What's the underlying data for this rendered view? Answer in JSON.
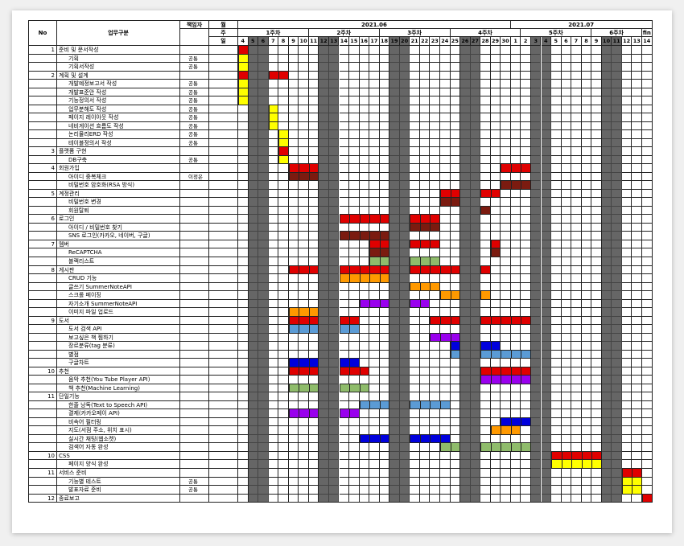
{
  "headers": {
    "no": "No",
    "category": "업무구분",
    "owner": "책임자",
    "month": "월",
    "week": "주",
    "day": "일"
  },
  "months": [
    {
      "label": "2021.06",
      "start": 0,
      "end": 27
    },
    {
      "label": "2021.07",
      "start": 27,
      "end": 41
    }
  ],
  "weeks": [
    {
      "label": "1주차",
      "start": 0,
      "end": 7
    },
    {
      "label": "2주차",
      "start": 7,
      "end": 14
    },
    {
      "label": "3주차",
      "start": 14,
      "end": 21
    },
    {
      "label": "4주차",
      "start": 21,
      "end": 28
    },
    {
      "label": "5주차",
      "start": 28,
      "end": 35
    },
    {
      "label": "6주차",
      "start": 35,
      "end": 40
    },
    {
      "label": "fin",
      "start": 40,
      "end": 41
    }
  ],
  "days": [
    "4",
    "5",
    "6",
    "7",
    "8",
    "9",
    "10",
    "11",
    "12",
    "13",
    "14",
    "15",
    "16",
    "17",
    "18",
    "19",
    "20",
    "21",
    "22",
    "23",
    "24",
    "25",
    "26",
    "27",
    "28",
    "29",
    "30",
    "1",
    "2",
    "3",
    "4",
    "5",
    "6",
    "7",
    "8",
    "9",
    "10",
    "11",
    "12",
    "13",
    "14"
  ],
  "weekend_cols": [
    1,
    2,
    8,
    9,
    15,
    16,
    22,
    23,
    29,
    30,
    36,
    37
  ],
  "colors": {
    "red": "#e00000",
    "yellow": "#ffff00",
    "darkred": "#7b1b10",
    "orange": "#ff9900",
    "green": "#8fbc6b",
    "steelblue": "#5b9bd5",
    "purple": "#9900ee",
    "blue": "#0000dd",
    "weekend": "#666666"
  },
  "rows": [
    {
      "no": "1",
      "task": "준비 및 문서작성",
      "owner": "",
      "indent": 0,
      "bars": [
        [
          0,
          1,
          "red"
        ]
      ]
    },
    {
      "no": "",
      "task": "기획",
      "owner": "공통",
      "indent": 1,
      "bars": [
        [
          0,
          1,
          "yellow"
        ]
      ]
    },
    {
      "no": "",
      "task": "기획서작성",
      "owner": "공통",
      "indent": 1,
      "bars": [
        [
          0,
          1,
          "yellow"
        ]
      ]
    },
    {
      "no": "2",
      "task": "계획 및 설계",
      "owner": "",
      "indent": 0,
      "bars": [
        [
          0,
          1,
          "red"
        ],
        [
          3,
          5,
          "red"
        ]
      ]
    },
    {
      "no": "",
      "task": "개발예정보고서 작성",
      "owner": "공통",
      "indent": 1,
      "bars": [
        [
          0,
          1,
          "yellow"
        ]
      ]
    },
    {
      "no": "",
      "task": "개발표준안 작성",
      "owner": "공통",
      "indent": 1,
      "bars": [
        [
          0,
          1,
          "yellow"
        ]
      ]
    },
    {
      "no": "",
      "task": "기능정의서 작성",
      "owner": "공통",
      "indent": 1,
      "bars": [
        [
          0,
          1,
          "yellow"
        ]
      ]
    },
    {
      "no": "",
      "task": "업무분해도 작성",
      "owner": "공통",
      "indent": 1,
      "bars": [
        [
          3,
          4,
          "yellow"
        ]
      ]
    },
    {
      "no": "",
      "task": "페이지 레이아웃 작성",
      "owner": "공통",
      "indent": 1,
      "bars": [
        [
          3,
          4,
          "yellow"
        ]
      ]
    },
    {
      "no": "",
      "task": "네비게이션 흐름도 작성",
      "owner": "공통",
      "indent": 1,
      "bars": [
        [
          3,
          4,
          "yellow"
        ]
      ]
    },
    {
      "no": "",
      "task": "논리물리ERD 작성",
      "owner": "공통",
      "indent": 1,
      "bars": [
        [
          4,
          5,
          "yellow"
        ]
      ]
    },
    {
      "no": "",
      "task": "테이블정의서 작성",
      "owner": "공통",
      "indent": 1,
      "bars": [
        [
          4,
          5,
          "yellow"
        ]
      ]
    },
    {
      "no": "3",
      "task": "플랫폼 구현",
      "owner": "",
      "indent": 0,
      "bars": [
        [
          4,
          5,
          "red"
        ]
      ]
    },
    {
      "no": "",
      "task": "DB구축",
      "owner": "공통",
      "indent": 1,
      "bars": [
        [
          4,
          5,
          "yellow"
        ]
      ]
    },
    {
      "no": "4",
      "task": "회원가입",
      "owner": "",
      "indent": 0,
      "bars": [
        [
          5,
          8,
          "red"
        ],
        [
          26,
          29,
          "red"
        ]
      ]
    },
    {
      "no": "",
      "task": "아이디 중복체크",
      "owner": "이정은",
      "indent": 1,
      "bars": [
        [
          5,
          8,
          "darkred"
        ]
      ]
    },
    {
      "no": "",
      "task": "비밀번호 암호화(RSA 방식)",
      "owner": "",
      "indent": 1,
      "bars": [
        [
          26,
          29,
          "darkred"
        ]
      ]
    },
    {
      "no": "5",
      "task": "계정관리",
      "owner": "",
      "indent": 0,
      "bars": [
        [
          20,
          22,
          "red"
        ],
        [
          24,
          26,
          "red"
        ]
      ]
    },
    {
      "no": "",
      "task": "비밀번호 변경",
      "owner": "",
      "indent": 1,
      "bars": [
        [
          20,
          22,
          "darkred"
        ]
      ]
    },
    {
      "no": "",
      "task": "회원탈퇴",
      "owner": "",
      "indent": 1,
      "bars": [
        [
          24,
          25,
          "darkred"
        ]
      ]
    },
    {
      "no": "6",
      "task": "로그인",
      "owner": "",
      "indent": 0,
      "bars": [
        [
          10,
          15,
          "red"
        ],
        [
          17,
          20,
          "red"
        ]
      ]
    },
    {
      "no": "",
      "task": "아이디 / 비밀번호 찾기",
      "owner": "",
      "indent": 1,
      "bars": [
        [
          17,
          20,
          "darkred"
        ]
      ]
    },
    {
      "no": "",
      "task": "SNS 로그인(카카오, 네이버, 구글)",
      "owner": "",
      "indent": 1,
      "bars": [
        [
          10,
          15,
          "darkred"
        ]
      ]
    },
    {
      "no": "7",
      "task": "멤버",
      "owner": "",
      "indent": 0,
      "bars": [
        [
          13,
          15,
          "red"
        ],
        [
          17,
          20,
          "red"
        ],
        [
          25,
          26,
          "red"
        ]
      ]
    },
    {
      "no": "",
      "task": "ReCAPTCHA",
      "owner": "",
      "indent": 1,
      "bars": [
        [
          13,
          15,
          "darkred"
        ],
        [
          25,
          26,
          "darkred"
        ]
      ]
    },
    {
      "no": "",
      "task": "블랙리스트",
      "owner": "",
      "indent": 1,
      "bars": [
        [
          13,
          15,
          "green"
        ],
        [
          17,
          20,
          "green"
        ]
      ]
    },
    {
      "no": "8",
      "task": "게시판",
      "owner": "",
      "indent": 0,
      "bars": [
        [
          5,
          8,
          "red"
        ],
        [
          10,
          15,
          "red"
        ],
        [
          17,
          22,
          "red"
        ],
        [
          24,
          25,
          "red"
        ]
      ]
    },
    {
      "no": "",
      "task": "CRUD 기능",
      "owner": "",
      "indent": 1,
      "bars": [
        [
          10,
          15,
          "orange"
        ]
      ]
    },
    {
      "no": "",
      "task": "글쓰기 SummerNoteAPI",
      "owner": "",
      "indent": 1,
      "bars": [
        [
          17,
          20,
          "orange"
        ]
      ]
    },
    {
      "no": "",
      "task": "스크롤 페이징",
      "owner": "",
      "indent": 1,
      "bars": [
        [
          20,
          22,
          "orange"
        ],
        [
          24,
          25,
          "orange"
        ]
      ]
    },
    {
      "no": "",
      "task": "자기소개 SummerNoteAPI",
      "owner": "",
      "indent": 1,
      "bars": [
        [
          12,
          15,
          "purple"
        ],
        [
          17,
          19,
          "purple"
        ]
      ]
    },
    {
      "no": "",
      "task": "이미지 파일 업로드",
      "owner": "",
      "indent": 1,
      "bars": [
        [
          5,
          8,
          "orange"
        ]
      ]
    },
    {
      "no": "9",
      "task": "도서",
      "owner": "",
      "indent": 0,
      "bars": [
        [
          5,
          8,
          "red"
        ],
        [
          10,
          12,
          "red"
        ],
        [
          19,
          22,
          "red"
        ],
        [
          24,
          29,
          "red"
        ]
      ]
    },
    {
      "no": "",
      "task": "도서 검색 API",
      "owner": "",
      "indent": 1,
      "bars": [
        [
          5,
          8,
          "steelblue"
        ],
        [
          10,
          12,
          "steelblue"
        ]
      ]
    },
    {
      "no": "",
      "task": "보고싶은 책 찜하기",
      "owner": "",
      "indent": 1,
      "bars": [
        [
          19,
          22,
          "purple"
        ]
      ]
    },
    {
      "no": "",
      "task": "장르분류(tag 분류)",
      "owner": "",
      "indent": 1,
      "bars": [
        [
          21,
          22,
          "blue"
        ],
        [
          24,
          26,
          "blue"
        ]
      ]
    },
    {
      "no": "",
      "task": "별점",
      "owner": "",
      "indent": 1,
      "bars": [
        [
          21,
          22,
          "steelblue"
        ],
        [
          24,
          29,
          "steelblue"
        ]
      ]
    },
    {
      "no": "",
      "task": "구글차트",
      "owner": "",
      "indent": 1,
      "bars": [
        [
          5,
          8,
          "blue"
        ],
        [
          10,
          12,
          "blue"
        ]
      ]
    },
    {
      "no": "10",
      "task": "추천",
      "owner": "",
      "indent": 0,
      "bars": [
        [
          5,
          8,
          "red"
        ],
        [
          10,
          13,
          "red"
        ],
        [
          24,
          29,
          "red"
        ]
      ]
    },
    {
      "no": "",
      "task": "음악 추천(You Tube Player API)",
      "owner": "",
      "indent": 1,
      "bars": [
        [
          24,
          29,
          "purple"
        ]
      ]
    },
    {
      "no": "",
      "task": "책 추천(Machine Learning)",
      "owner": "",
      "indent": 1,
      "bars": [
        [
          5,
          8,
          "green"
        ],
        [
          10,
          13,
          "green"
        ]
      ]
    },
    {
      "no": "11",
      "task": "단일기능",
      "owner": "",
      "indent": 0,
      "bars": []
    },
    {
      "no": "",
      "task": "한줄 낭독(Text to Speech API)",
      "owner": "",
      "indent": 1,
      "bars": [
        [
          12,
          15,
          "steelblue"
        ],
        [
          17,
          21,
          "steelblue"
        ]
      ]
    },
    {
      "no": "",
      "task": "결제(카카오페이 API)",
      "owner": "",
      "indent": 1,
      "bars": [
        [
          5,
          8,
          "purple"
        ],
        [
          10,
          12,
          "purple"
        ]
      ]
    },
    {
      "no": "",
      "task": "비속어 필터링",
      "owner": "",
      "indent": 1,
      "bars": [
        [
          26,
          29,
          "blue"
        ]
      ]
    },
    {
      "no": "",
      "task": "지도(서점 주소, 위치 표시)",
      "owner": "",
      "indent": 1,
      "bars": [
        [
          25,
          28,
          "orange"
        ]
      ]
    },
    {
      "no": "",
      "task": "실시간 채팅(웹소켓)",
      "owner": "",
      "indent": 1,
      "bars": [
        [
          12,
          15,
          "blue"
        ],
        [
          17,
          21,
          "blue"
        ]
      ]
    },
    {
      "no": "",
      "task": "검색어 자동 완성",
      "owner": "",
      "indent": 1,
      "bars": [
        [
          20,
          22,
          "green"
        ],
        [
          24,
          29,
          "green"
        ]
      ]
    },
    {
      "no": "10",
      "task": "CSS",
      "owner": "",
      "indent": 0,
      "bars": [
        [
          31,
          36,
          "red"
        ]
      ]
    },
    {
      "no": "",
      "task": "페이지 양식 완성",
      "owner": "",
      "indent": 1,
      "bars": [
        [
          31,
          36,
          "yellow"
        ]
      ]
    },
    {
      "no": "11",
      "task": "서비스 준비",
      "owner": "",
      "indent": 0,
      "bars": [
        [
          38,
          40,
          "red"
        ]
      ]
    },
    {
      "no": "",
      "task": "기능별 테스트",
      "owner": "공통",
      "indent": 1,
      "bars": [
        [
          38,
          40,
          "yellow"
        ]
      ]
    },
    {
      "no": "",
      "task": "발표자료 준비",
      "owner": "공통",
      "indent": 1,
      "bars": [
        [
          38,
          40,
          "yellow"
        ]
      ]
    },
    {
      "no": "12",
      "task": "종료보고",
      "owner": "",
      "indent": 0,
      "bars": [
        [
          40,
          41,
          "red"
        ]
      ]
    }
  ]
}
